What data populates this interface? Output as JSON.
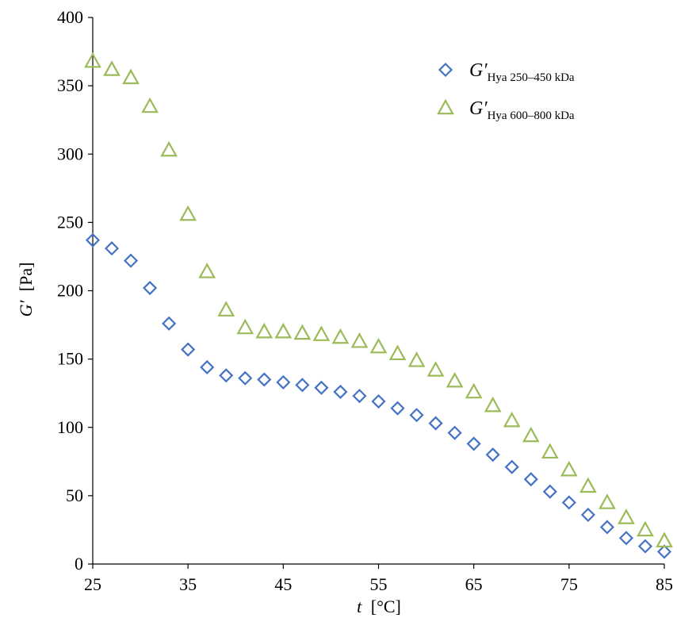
{
  "chart_data": {
    "type": "scatter",
    "xlabel": {
      "symbol": "t",
      "unit": "[°C]"
    },
    "ylabel": {
      "symbol": "G′",
      "unit": "[Pa]"
    },
    "xlim": [
      25,
      85
    ],
    "ylim": [
      0,
      400
    ],
    "xticks": [
      25,
      35,
      45,
      55,
      65,
      75,
      85
    ],
    "yticks": [
      0,
      50,
      100,
      150,
      200,
      250,
      300,
      350,
      400
    ],
    "grid": false,
    "legend_position": "top-right",
    "x": [
      25,
      27,
      29,
      31,
      33,
      35,
      37,
      39,
      41,
      43,
      45,
      47,
      49,
      51,
      53,
      55,
      57,
      59,
      61,
      63,
      65,
      67,
      69,
      71,
      73,
      75,
      77,
      79,
      81,
      83,
      85
    ],
    "series": [
      {
        "name": "G′Hya 250–450 kDa",
        "label_main": "G′",
        "label_sub": "Hya 250–450 kDa",
        "marker": "diamond",
        "color": "#4472C4",
        "values": [
          237,
          231,
          222,
          202,
          176,
          157,
          144,
          138,
          136,
          135,
          133,
          131,
          129,
          126,
          123,
          119,
          114,
          109,
          103,
          96,
          88,
          80,
          71,
          62,
          53,
          45,
          36,
          27,
          19,
          13,
          9
        ]
      },
      {
        "name": "G′Hya 600–800 kDa",
        "label_main": "G′",
        "label_sub": "Hya 600–800 kDa",
        "marker": "triangle",
        "color": "#9BBB59",
        "values": [
          368,
          362,
          356,
          335,
          303,
          256,
          214,
          186,
          173,
          170,
          170,
          169,
          168,
          166,
          163,
          159,
          154,
          149,
          142,
          134,
          126,
          116,
          105,
          94,
          82,
          69,
          57,
          45,
          34,
          25,
          17
        ]
      }
    ]
  }
}
